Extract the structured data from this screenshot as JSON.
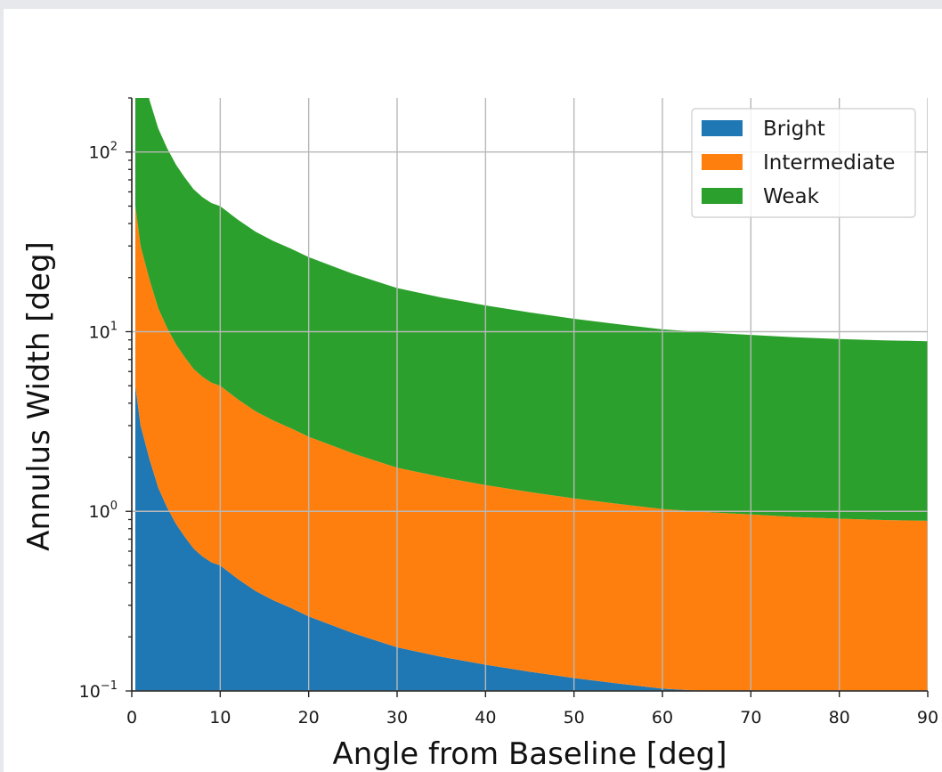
{
  "chart_data": {
    "type": "area",
    "xlabel": "Angle from Baseline [deg]",
    "ylabel": "Annulus Width [deg]",
    "xlim": [
      0,
      90
    ],
    "ylim": [
      0.1,
      200
    ],
    "yscale": "log",
    "grid": true,
    "legend_position": "top-right",
    "x_ticks": [
      "0",
      "10",
      "20",
      "30",
      "40",
      "50",
      "60",
      "70",
      "80",
      "90"
    ],
    "y_ticks": [
      {
        "base": "10",
        "exp": "−1"
      },
      {
        "base": "10",
        "exp": "0"
      },
      {
        "base": "10",
        "exp": "1"
      },
      {
        "base": "10",
        "exp": "2"
      }
    ],
    "x": [
      0.4,
      1,
      2,
      3,
      4,
      5,
      6,
      7,
      8,
      9,
      10,
      12,
      14,
      16,
      18,
      20,
      25,
      30,
      35,
      40,
      45,
      50,
      55,
      60,
      65,
      70,
      75,
      80,
      85,
      90
    ],
    "series": [
      {
        "name": "Bright",
        "color": "#1f77b4",
        "lower": [
          0.1,
          0.1,
          0.1,
          0.1,
          0.1,
          0.1,
          0.1,
          0.1,
          0.1,
          0.1,
          0.1,
          0.1,
          0.1,
          0.1,
          0.1,
          0.1,
          0.1,
          0.1,
          0.1,
          0.1,
          0.1,
          0.1,
          0.1,
          0.1,
          0.1,
          0.1,
          0.1,
          0.1,
          0.1,
          0.1
        ],
        "upper": [
          5.0,
          3.0,
          1.95,
          1.35,
          1.05,
          0.85,
          0.72,
          0.62,
          0.56,
          0.52,
          0.5,
          0.42,
          0.36,
          0.32,
          0.29,
          0.26,
          0.21,
          0.175,
          0.155,
          0.14,
          0.128,
          0.118,
          0.11,
          0.103,
          0.1,
          0.1,
          0.1,
          0.1,
          0.1,
          0.1
        ]
      },
      {
        "name": "Intermediate",
        "color": "#ff7f0e",
        "lower": [
          5.0,
          3.0,
          1.95,
          1.35,
          1.05,
          0.85,
          0.72,
          0.62,
          0.56,
          0.52,
          0.5,
          0.42,
          0.36,
          0.32,
          0.29,
          0.26,
          0.21,
          0.175,
          0.155,
          0.14,
          0.128,
          0.118,
          0.11,
          0.103,
          0.1,
          0.1,
          0.1,
          0.1,
          0.1,
          0.1
        ],
        "upper": [
          50,
          30,
          19.5,
          13.5,
          10.5,
          8.5,
          7.2,
          6.2,
          5.6,
          5.2,
          5.0,
          4.2,
          3.6,
          3.2,
          2.9,
          2.6,
          2.1,
          1.75,
          1.55,
          1.4,
          1.28,
          1.18,
          1.1,
          1.03,
          0.99,
          0.96,
          0.93,
          0.91,
          0.895,
          0.885
        ]
      },
      {
        "name": "Weak",
        "color": "#2ca02c",
        "lower": [
          50,
          30,
          19.5,
          13.5,
          10.5,
          8.5,
          7.2,
          6.2,
          5.6,
          5.2,
          5.0,
          4.2,
          3.6,
          3.2,
          2.9,
          2.6,
          2.1,
          1.75,
          1.55,
          1.4,
          1.28,
          1.18,
          1.1,
          1.03,
          0.99,
          0.96,
          0.93,
          0.91,
          0.895,
          0.885
        ],
        "upper": [
          500,
          300,
          195,
          135,
          105,
          85,
          72,
          62,
          56,
          52,
          50,
          42,
          36,
          32,
          29,
          26,
          21,
          17.5,
          15.5,
          14,
          12.8,
          11.8,
          11,
          10.3,
          9.9,
          9.6,
          9.3,
          9.1,
          8.95,
          8.85
        ]
      }
    ],
    "legend": [
      {
        "label": "Bright",
        "color": "#1f77b4"
      },
      {
        "label": "Intermediate",
        "color": "#ff7f0e"
      },
      {
        "label": "Weak",
        "color": "#2ca02c"
      }
    ]
  }
}
